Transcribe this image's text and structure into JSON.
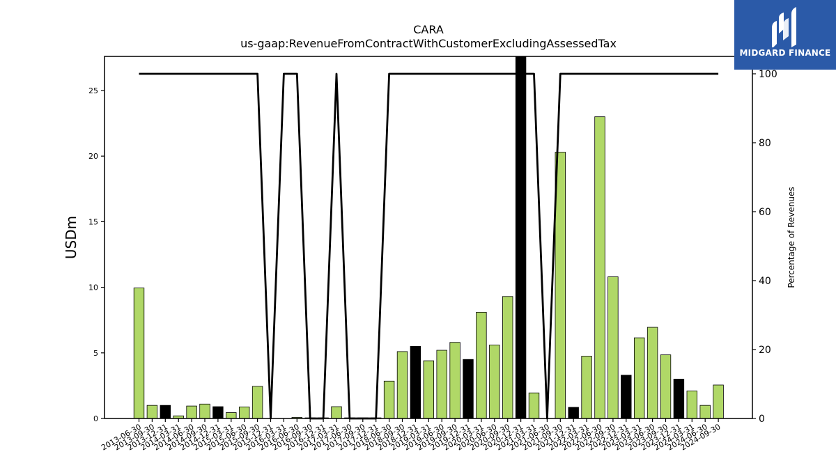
{
  "chart_data": {
    "type": "bar",
    "title": "CARA",
    "subtitle": "us-gaap:RevenueFromContractWithCustomerExcludingAssessedTax",
    "ylabel": "USDm",
    "y2label": "Percentage of Revenues",
    "ylim": [
      0,
      27.6
    ],
    "y2lim": [
      0,
      100
    ],
    "yticks": [
      0,
      5,
      10,
      15,
      20,
      25
    ],
    "y2ticks": [
      0,
      20,
      40,
      60,
      80,
      100
    ],
    "categories": [
      "2013-06-30",
      "2013-09-30",
      "2013-12-31",
      "2014-03-31",
      "2014-06-30",
      "2014-09-30",
      "2014-12-31",
      "2015-03-31",
      "2015-06-30",
      "2015-09-30",
      "2015-12-31",
      "2016-03-31",
      "2016-06-30",
      "2016-09-30",
      "2016-12-31",
      "2017-03-31",
      "2017-06-30",
      "2017-09-30",
      "2017-12-31",
      "2018-06-30",
      "2018-09-30",
      "2018-12-31",
      "2019-03-31",
      "2019-06-30",
      "2019-09-30",
      "2019-12-31",
      "2020-03-31",
      "2020-06-30",
      "2020-09-30",
      "2020-12-31",
      "2021-03-31",
      "2021-06-30",
      "2021-09-30",
      "2021-12-31",
      "2022-03-31",
      "2022-06-30",
      "2022-09-30",
      "2022-12-31",
      "2023-03-31",
      "2023-06-30",
      "2023-09-30",
      "2023-12-31",
      "2024-03-31",
      "2024-06-30",
      "2024-09-30"
    ],
    "values": [
      9.95,
      1.0,
      1.0,
      0.2,
      0.95,
      1.1,
      0.9,
      0.45,
      0.88,
      2.45,
      0.0,
      0.0,
      0.08,
      0.05,
      0.05,
      0.9,
      0.05,
      0.05,
      0.05,
      2.85,
      5.1,
      5.5,
      4.4,
      5.2,
      5.8,
      4.5,
      8.1,
      5.6,
      9.3,
      27.6,
      1.95,
      0.0,
      20.3,
      0.85,
      4.75,
      23.0,
      10.8,
      3.3,
      6.15,
      6.95,
      4.85,
      3.0,
      2.1,
      1.0,
      2.55
    ],
    "highlight": [
      false,
      false,
      true,
      false,
      false,
      false,
      true,
      false,
      false,
      false,
      false,
      false,
      false,
      false,
      false,
      false,
      false,
      false,
      false,
      false,
      false,
      true,
      false,
      false,
      false,
      true,
      false,
      false,
      false,
      true,
      false,
      false,
      false,
      true,
      false,
      false,
      false,
      true,
      false,
      false,
      false,
      true,
      false,
      false,
      false
    ],
    "line_values": [
      100,
      100,
      100,
      100,
      100,
      100,
      100,
      100,
      100,
      100,
      0,
      100,
      100,
      0,
      0,
      100,
      0,
      0,
      0,
      100,
      100,
      100,
      100,
      100,
      100,
      100,
      100,
      100,
      100,
      100,
      100,
      0,
      100,
      100,
      100,
      100,
      100,
      100,
      100,
      100,
      100,
      100,
      100,
      100,
      100
    ],
    "colors": {
      "bar": "#b0d867",
      "bar_highlight": "#000000",
      "line": "#000000"
    }
  },
  "logo": {
    "text": "MIDGARD FINANCE",
    "icon": "midgard-logo-icon",
    "background": "#2b5aa8"
  }
}
